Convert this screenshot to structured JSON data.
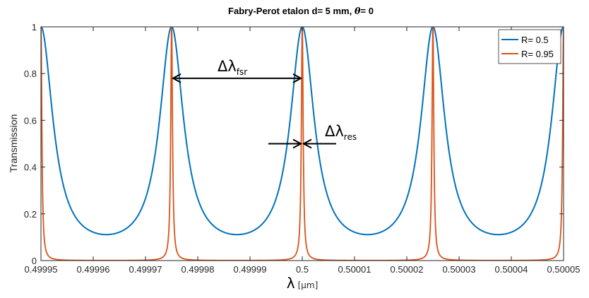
{
  "chart_data": {
    "type": "line",
    "title": "Fabry-Perot etalon d= 5 mm, θ= 0",
    "title_parts": {
      "prefix": "Fabry-Perot etalon d= 5 mm, ",
      "symbol": "θ",
      "suffix": "= 0"
    },
    "xlabel": "λ",
    "xlabel_unit": "[μm]",
    "ylabel": "Transmission",
    "xlim": [
      0.49995,
      0.50005
    ],
    "ylim": [
      0,
      1
    ],
    "xticks": [
      0.49995,
      0.49996,
      0.49997,
      0.49998,
      0.49999,
      0.5,
      0.50001,
      0.50002,
      0.50003,
      0.50004,
      0.50005
    ],
    "xtick_labels": [
      "0.49995",
      "0.49996",
      "0.49997",
      "0.49998",
      "0.49999",
      "0.5",
      "0.50001",
      "0.50002",
      "0.50003",
      "0.50004",
      "0.50005"
    ],
    "yticks": [
      0,
      0.2,
      0.4,
      0.6,
      0.8,
      1
    ],
    "ytick_labels": [
      "0",
      "0.2",
      "0.4",
      "0.6",
      "0.8",
      "1"
    ],
    "grid": false,
    "legend_position": "top-right",
    "peaks_x": [
      0.49995,
      0.499975,
      0.5,
      0.500025,
      0.50005
    ],
    "series": [
      {
        "name": "R= 0.5",
        "reflectance": 0.5,
        "color": "#0072BD"
      },
      {
        "name": "R= 0.95",
        "reflectance": 0.95,
        "color": "#D95319"
      }
    ],
    "annotations": [
      {
        "symbol": "Δλ",
        "subscript": "fsr",
        "from_x": 0.499975,
        "to_x": 0.5,
        "y": 0.78,
        "style": "double-arrow"
      },
      {
        "symbol": "Δλ",
        "subscript": "res",
        "at_x": 0.5,
        "y": 0.5,
        "style": "inward-arrows"
      }
    ]
  }
}
